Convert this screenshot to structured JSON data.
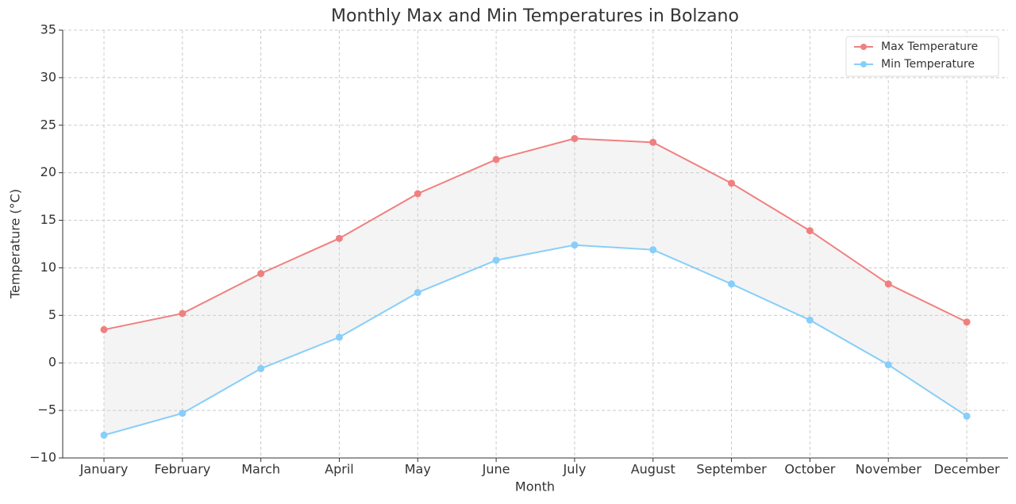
{
  "chart_data": {
    "type": "line",
    "title": "Monthly Max and Min Temperatures in Bolzano",
    "xlabel": "Month",
    "ylabel": "Temperature (°C)",
    "categories": [
      "January",
      "February",
      "March",
      "April",
      "May",
      "June",
      "July",
      "August",
      "September",
      "October",
      "November",
      "December"
    ],
    "series": [
      {
        "name": "Max Temperature",
        "color": "#f08080",
        "values": [
          3.5,
          5.2,
          9.4,
          13.1,
          17.8,
          21.4,
          23.6,
          23.2,
          18.9,
          13.9,
          8.3,
          4.3
        ]
      },
      {
        "name": "Min Temperature",
        "color": "#87cefa",
        "values": [
          -7.6,
          -5.3,
          -0.6,
          2.7,
          7.4,
          10.8,
          12.4,
          11.9,
          8.3,
          4.5,
          -0.2,
          -5.6
        ]
      }
    ],
    "fill_between_color": "#d3d3d3",
    "ylim": [
      -10,
      35
    ],
    "yticks": [
      {
        "value": -10,
        "label": "−10"
      },
      {
        "value": -5,
        "label": "−5"
      },
      0,
      5,
      10,
      15,
      20,
      25,
      30,
      35
    ],
    "grid": true,
    "legend": "upper right"
  }
}
